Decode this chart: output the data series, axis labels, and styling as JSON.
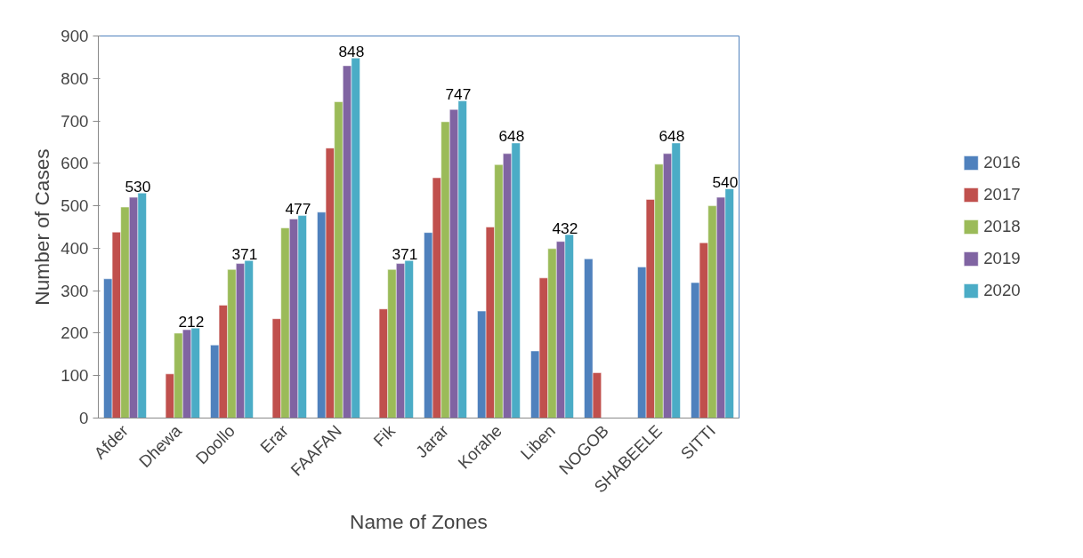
{
  "chart_data": {
    "type": "bar",
    "xlabel": "Name of Zones",
    "ylabel": "Number of Cases",
    "categories": [
      "Afder",
      "Dhewa",
      "Doollo",
      "Erar",
      "FAAFAN",
      "Fik",
      "Jarar",
      "Korahe",
      "Liben",
      "NOGOB",
      "SHABEELE",
      "SITTI"
    ],
    "ylim": [
      0,
      900
    ],
    "yticks": [
      0,
      100,
      200,
      300,
      400,
      500,
      600,
      700,
      800,
      900
    ],
    "grid": false,
    "legend": "right",
    "series": [
      {
        "name": "2016",
        "color": "#4f81bd",
        "values": [
          328,
          null,
          172,
          null,
          485,
          null,
          437,
          252,
          158,
          375,
          356,
          319
        ]
      },
      {
        "name": "2017",
        "color": "#c0504d",
        "values": [
          438,
          104,
          266,
          234,
          636,
          257,
          566,
          450,
          330,
          107,
          515,
          413
        ]
      },
      {
        "name": "2018",
        "color": "#9bbb59",
        "values": [
          497,
          200,
          350,
          448,
          745,
          350,
          698,
          597,
          399,
          null,
          598,
          500
        ]
      },
      {
        "name": "2019",
        "color": "#8064a2",
        "values": [
          520,
          208,
          364,
          469,
          830,
          364,
          727,
          623,
          416,
          null,
          623,
          520
        ]
      },
      {
        "name": "2020",
        "color": "#4bacc6",
        "values": [
          530,
          212,
          371,
          477,
          848,
          371,
          747,
          648,
          432,
          null,
          648,
          540
        ],
        "value_labels": [
          "530",
          "212",
          "371",
          "477",
          "848",
          "371",
          "747",
          "648",
          "432",
          null,
          "648",
          "540"
        ]
      }
    ]
  }
}
